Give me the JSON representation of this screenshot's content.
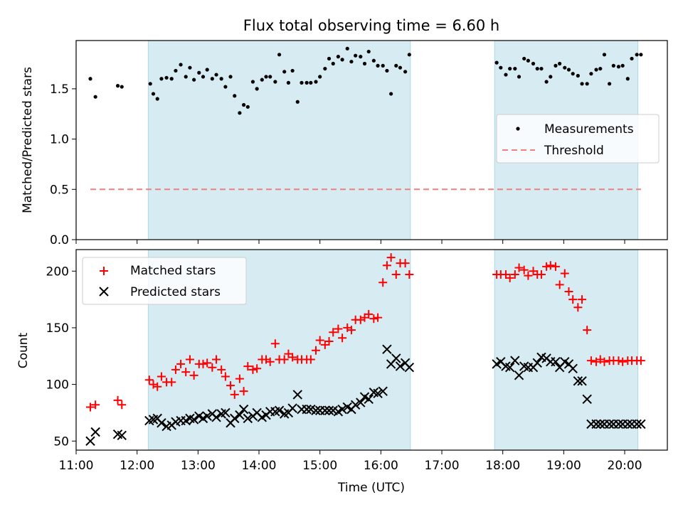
{
  "figure": {
    "title": "Flux total observing time = 6.60 h"
  },
  "colors": {
    "band": "#add8e6",
    "measure": "#000000",
    "threshold": "#f08080",
    "matched": "#ff0000",
    "predicted": "#000000"
  },
  "chart_data": [
    {
      "type": "scatter",
      "ylabel": "Matched/Predicted stars",
      "xlim": [
        "11:00",
        "20:42"
      ],
      "ylim": [
        0,
        1.98
      ],
      "yticks": [
        0.0,
        0.5,
        1.0,
        1.5
      ],
      "ytick_labels": [
        "0.0",
        "0.5",
        "1.0",
        "1.5"
      ],
      "grid": false,
      "legend": {
        "position": "right",
        "entries": [
          "Measurements",
          "Threshold"
        ]
      },
      "shaded_intervals": [
        [
          "12:11",
          "16:29"
        ],
        [
          "17:52",
          "20:13"
        ]
      ],
      "threshold": {
        "name": "Threshold",
        "value": 0.5,
        "x_range": [
          "11:14",
          "20:16"
        ]
      },
      "series": [
        {
          "name": "Measurements",
          "x": [
            "11:14",
            "11:19",
            "11:41",
            "11:45",
            "12:13",
            "12:16",
            "12:20",
            "12:24",
            "12:29",
            "12:34",
            "12:38",
            "12:43",
            "12:48",
            "12:52",
            "12:56",
            "13:01",
            "13:05",
            "13:09",
            "13:14",
            "13:18",
            "13:23",
            "13:27",
            "13:32",
            "13:36",
            "13:41",
            "13:45",
            "13:49",
            "13:54",
            "13:58",
            "14:03",
            "14:07",
            "14:11",
            "14:16",
            "14:20",
            "14:25",
            "14:29",
            "14:33",
            "14:38",
            "14:42",
            "14:47",
            "14:51",
            "14:56",
            "15:00",
            "15:05",
            "15:09",
            "15:13",
            "15:18",
            "15:22",
            "15:27",
            "15:31",
            "15:35",
            "15:40",
            "15:44",
            "15:48",
            "15:53",
            "15:57",
            "16:02",
            "16:06",
            "16:10",
            "16:15",
            "16:19",
            "16:24",
            "16:28",
            "17:54",
            "17:58",
            "18:03",
            "18:07",
            "18:12",
            "18:16",
            "18:21",
            "18:25",
            "18:30",
            "18:34",
            "18:38",
            "18:43",
            "18:47",
            "18:52",
            "18:56",
            "19:01",
            "19:05",
            "19:09",
            "19:14",
            "19:18",
            "19:23",
            "19:27",
            "19:32",
            "19:36",
            "19:40",
            "19:45",
            "19:49",
            "19:54",
            "19:58",
            "20:03",
            "20:07",
            "20:12",
            "20:16"
          ],
          "y": [
            1.6,
            1.42,
            1.53,
            1.52,
            1.55,
            1.45,
            1.4,
            1.6,
            1.61,
            1.6,
            1.68,
            1.74,
            1.62,
            1.71,
            1.59,
            1.66,
            1.62,
            1.69,
            1.6,
            1.64,
            1.6,
            1.52,
            1.62,
            1.43,
            1.26,
            1.34,
            1.32,
            1.57,
            1.5,
            1.59,
            1.62,
            1.62,
            1.57,
            1.84,
            1.67,
            1.56,
            1.68,
            1.37,
            1.56,
            1.56,
            1.56,
            1.57,
            1.62,
            1.7,
            1.8,
            1.75,
            1.82,
            1.79,
            1.9,
            1.77,
            1.83,
            1.82,
            1.75,
            1.87,
            1.78,
            1.73,
            1.73,
            1.68,
            1.45,
            1.73,
            1.71,
            1.67,
            1.84,
            1.76,
            1.71,
            1.64,
            1.7,
            1.7,
            1.62,
            1.8,
            1.78,
            1.75,
            1.7,
            1.7,
            1.57,
            1.62,
            1.73,
            1.75,
            1.71,
            1.69,
            1.65,
            1.63,
            1.55,
            1.55,
            1.65,
            1.69,
            1.7,
            1.84,
            1.55,
            1.73,
            1.72,
            1.73,
            1.6,
            1.8,
            1.84,
            1.84
          ]
        }
      ]
    },
    {
      "type": "scatter",
      "xlabel": "Time (UTC)",
      "ylabel": "Count",
      "xlim": [
        "11:00",
        "20:42"
      ],
      "ylim": [
        42,
        219
      ],
      "xticks": [
        "11:00",
        "12:00",
        "13:00",
        "14:00",
        "15:00",
        "16:00",
        "17:00",
        "18:00",
        "19:00",
        "20:00"
      ],
      "yticks": [
        50,
        100,
        150,
        200
      ],
      "ytick_labels": [
        "50",
        "100",
        "150",
        "200"
      ],
      "grid": false,
      "legend": {
        "position": "top-left",
        "entries": [
          "Matched stars",
          "Predicted stars"
        ]
      },
      "shaded_intervals": [
        [
          "12:11",
          "16:29"
        ],
        [
          "17:52",
          "20:13"
        ]
      ],
      "series": [
        {
          "name": "Matched stars",
          "x": [
            "11:14",
            "11:19",
            "11:41",
            "11:45",
            "12:12",
            "12:16",
            "12:20",
            "12:24",
            "12:29",
            "12:34",
            "12:38",
            "12:43",
            "12:48",
            "12:52",
            "12:56",
            "13:01",
            "13:05",
            "13:09",
            "13:14",
            "13:18",
            "13:23",
            "13:27",
            "13:32",
            "13:36",
            "13:41",
            "13:45",
            "13:49",
            "13:54",
            "13:58",
            "14:03",
            "14:07",
            "14:11",
            "14:16",
            "14:20",
            "14:25",
            "14:29",
            "14:33",
            "14:38",
            "14:42",
            "14:47",
            "14:51",
            "14:56",
            "15:00",
            "15:05",
            "15:09",
            "15:13",
            "15:18",
            "15:22",
            "15:27",
            "15:31",
            "15:35",
            "15:40",
            "15:44",
            "15:48",
            "15:53",
            "15:57",
            "16:02",
            "16:06",
            "16:10",
            "16:15",
            "16:19",
            "16:24",
            "16:28",
            "17:54",
            "17:58",
            "18:03",
            "18:07",
            "18:12",
            "18:16",
            "18:21",
            "18:25",
            "18:30",
            "18:34",
            "18:38",
            "18:43",
            "18:47",
            "18:52",
            "18:56",
            "19:01",
            "19:05",
            "19:09",
            "19:14",
            "19:18",
            "19:23",
            "19:27",
            "19:32",
            "19:36",
            "19:40",
            "19:45",
            "19:49",
            "19:54",
            "19:58",
            "20:03",
            "20:07",
            "20:12",
            "20:16"
          ],
          "y": [
            80,
            82,
            86,
            82,
            104,
            100,
            98,
            107,
            102,
            102,
            113,
            118,
            111,
            122,
            108,
            118,
            118,
            119,
            115,
            122,
            113,
            107,
            99,
            91,
            105,
            94,
            116,
            113,
            114,
            122,
            122,
            120,
            136,
            122,
            122,
            127,
            124,
            122,
            122,
            122,
            122,
            130,
            139,
            135,
            138,
            146,
            149,
            141,
            150,
            148,
            157,
            157,
            159,
            162,
            158,
            159,
            190,
            205,
            212,
            197,
            207,
            207,
            197,
            197,
            197,
            197,
            194,
            197,
            203,
            201,
            196,
            200,
            197,
            197,
            204,
            205,
            204,
            188,
            198,
            182,
            175,
            168,
            175,
            148,
            121,
            120,
            122,
            120,
            121,
            121,
            121,
            120,
            121,
            121,
            121,
            121
          ],
          "values_note": ""
        },
        {
          "name": "Predicted stars",
          "x": [
            "11:14",
            "11:19",
            "11:41",
            "11:45",
            "12:12",
            "12:16",
            "12:20",
            "12:24",
            "12:29",
            "12:34",
            "12:38",
            "12:43",
            "12:48",
            "12:52",
            "12:56",
            "13:01",
            "13:05",
            "13:09",
            "13:14",
            "13:18",
            "13:23",
            "13:27",
            "13:32",
            "13:36",
            "13:41",
            "13:45",
            "13:49",
            "13:54",
            "13:58",
            "14:03",
            "14:07",
            "14:11",
            "14:16",
            "14:20",
            "14:25",
            "14:29",
            "14:33",
            "14:38",
            "14:42",
            "14:47",
            "14:51",
            "14:56",
            "15:00",
            "15:05",
            "15:09",
            "15:13",
            "15:18",
            "15:22",
            "15:27",
            "15:31",
            "15:35",
            "15:40",
            "15:44",
            "15:48",
            "15:53",
            "15:57",
            "16:02",
            "16:06",
            "16:10",
            "16:15",
            "16:19",
            "16:24",
            "16:28",
            "17:54",
            "17:58",
            "18:03",
            "18:07",
            "18:12",
            "18:16",
            "18:21",
            "18:25",
            "18:30",
            "18:34",
            "18:38",
            "18:43",
            "18:47",
            "18:52",
            "18:56",
            "19:01",
            "19:05",
            "19:09",
            "19:14",
            "19:18",
            "19:23",
            "19:27",
            "19:32",
            "19:36",
            "19:40",
            "19:45",
            "19:49",
            "19:54",
            "19:58",
            "20:03",
            "20:07",
            "20:12",
            "20:16"
          ],
          "y": [
            50,
            58,
            56,
            55,
            68,
            69,
            70,
            66,
            63,
            64,
            67,
            68,
            68,
            70,
            69,
            72,
            70,
            72,
            74,
            71,
            74,
            75,
            66,
            70,
            73,
            78,
            70,
            72,
            75,
            71,
            73,
            76,
            76,
            77,
            74,
            75,
            79,
            91,
            78,
            78,
            78,
            77,
            77,
            77,
            77,
            77,
            76,
            78,
            80,
            78,
            82,
            84,
            89,
            87,
            93,
            92,
            94,
            131,
            118,
            123,
            116,
            119,
            115,
            118,
            120,
            116,
            115,
            121,
            108,
            116,
            115,
            115,
            119,
            124,
            123,
            120,
            120,
            115,
            120,
            118,
            114,
            103,
            103,
            87,
            65,
            65,
            65,
            65,
            65,
            65,
            65,
            65,
            65,
            65,
            65,
            65
          ]
        }
      ]
    }
  ]
}
